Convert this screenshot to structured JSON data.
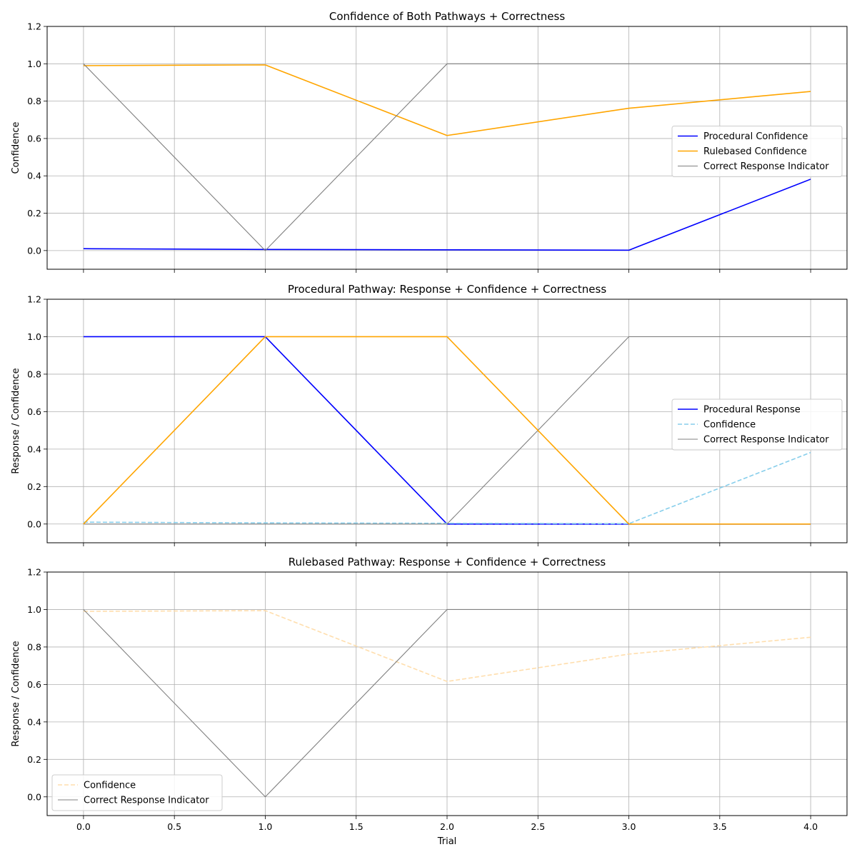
{
  "chart_data": [
    {
      "type": "line",
      "title": "Confidence of Both Pathways + Correctness",
      "xlabel": "",
      "ylabel": "Confidence",
      "x": [
        0,
        1,
        2,
        3,
        4
      ],
      "xlim": [
        -0.2,
        4.2
      ],
      "ylim": [
        -0.1,
        1.2
      ],
      "xticks": [
        "0.0",
        "0.5",
        "1.0",
        "1.5",
        "2.0",
        "2.5",
        "3.0",
        "3.5",
        "4.0"
      ],
      "yticks": [
        "0.0",
        "0.2",
        "0.4",
        "0.6",
        "0.8",
        "1.0",
        "1.2"
      ],
      "show_xtick_labels": false,
      "grid": true,
      "legend_position": "center-right",
      "series": [
        {
          "name": "Procedural Confidence",
          "values": [
            0.01,
            0.006,
            0.004,
            0.002,
            0.382
          ],
          "color": "#0000ff",
          "style": "solid",
          "width": 1.6
        },
        {
          "name": "Rulebased Confidence",
          "values": [
            0.99,
            0.994,
            0.616,
            0.762,
            0.852
          ],
          "color": "#ffa500",
          "style": "solid",
          "width": 1.6
        },
        {
          "name": "Correct Response Indicator",
          "values": [
            1,
            0,
            1,
            1,
            1
          ],
          "color": "#808080",
          "style": "solid",
          "width": 1.1
        }
      ]
    },
    {
      "type": "line",
      "title": "Procedural Pathway: Response + Confidence + Correctness",
      "xlabel": "",
      "ylabel": "Response / Confidence",
      "x": [
        0,
        1,
        2,
        3,
        4
      ],
      "xlim": [
        -0.2,
        4.2
      ],
      "ylim": [
        -0.1,
        1.2
      ],
      "xticks": [
        "0.0",
        "0.5",
        "1.0",
        "1.5",
        "2.0",
        "2.5",
        "3.0",
        "3.5",
        "4.0"
      ],
      "yticks": [
        "0.0",
        "0.2",
        "0.4",
        "0.6",
        "0.8",
        "1.0",
        "1.2"
      ],
      "show_xtick_labels": false,
      "grid": true,
      "legend_position": "center-right",
      "series": [
        {
          "name": "Procedural Response",
          "values": [
            1,
            1,
            0,
            0,
            0
          ],
          "color": "#0000ff",
          "style": "solid",
          "width": 1.6
        },
        {
          "name": "Confidence",
          "values": [
            0.01,
            0.006,
            0.004,
            0.002,
            0.382
          ],
          "color": "#87ceeb",
          "style": "dashed",
          "width": 1.6
        },
        {
          "name": "Correct Response Indicator",
          "values": [
            0,
            0,
            0,
            1,
            1
          ],
          "color": "#808080",
          "style": "solid",
          "width": 1.1
        },
        {
          "values": [
            0,
            1,
            1,
            0,
            0
          ],
          "color": "#ffa500",
          "style": "solid",
          "width": 1.6
        }
      ]
    },
    {
      "type": "line",
      "title": "Rulebased Pathway: Response + Confidence + Correctness",
      "xlabel": "Trial",
      "ylabel": "Response / Confidence",
      "x": [
        0,
        1,
        2,
        3,
        4
      ],
      "xlim": [
        -0.2,
        4.2
      ],
      "ylim": [
        -0.1,
        1.2
      ],
      "xticks": [
        "0.0",
        "0.5",
        "1.0",
        "1.5",
        "2.0",
        "2.5",
        "3.0",
        "3.5",
        "4.0"
      ],
      "yticks": [
        "0.0",
        "0.2",
        "0.4",
        "0.6",
        "0.8",
        "1.0",
        "1.2"
      ],
      "show_xtick_labels": true,
      "grid": true,
      "legend_position": "lower-left",
      "series": [
        {
          "name": "Confidence",
          "values": [
            0.99,
            0.994,
            0.616,
            0.762,
            0.852
          ],
          "color": "#ffdead",
          "style": "dashed",
          "width": 1.6
        },
        {
          "name": "Correct Response Indicator",
          "values": [
            1,
            0,
            1,
            1,
            1
          ],
          "color": "#808080",
          "style": "solid",
          "width": 1.1
        }
      ]
    }
  ]
}
